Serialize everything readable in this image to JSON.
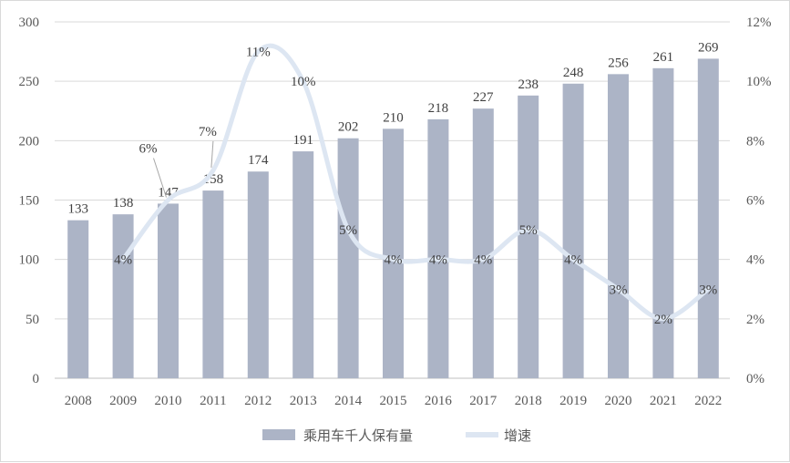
{
  "chart_data": {
    "type": "bar",
    "categories": [
      "2008",
      "2009",
      "2010",
      "2011",
      "2012",
      "2013",
      "2014",
      "2015",
      "2016",
      "2017",
      "2018",
      "2019",
      "2020",
      "2021",
      "2022"
    ],
    "series": [
      {
        "name": "乘用车千人保有量",
        "type": "bar",
        "axis": "left",
        "values": [
          133,
          138,
          147,
          158,
          174,
          191,
          202,
          210,
          218,
          227,
          238,
          248,
          256,
          261,
          269
        ],
        "labels": [
          "133",
          "138",
          "147",
          "158",
          "174",
          "191",
          "202",
          "210",
          "218",
          "227",
          "238",
          "248",
          "256",
          "261",
          "269"
        ],
        "color": "#acb4c6"
      },
      {
        "name": "增速",
        "type": "line",
        "axis": "right",
        "values": [
          null,
          4,
          6,
          7,
          11,
          10,
          5,
          4,
          4,
          4,
          5,
          4,
          3,
          2,
          3
        ],
        "labels": [
          "",
          "4%",
          "6%",
          "7%",
          "11%",
          "10%",
          "5%",
          "4%",
          "4%",
          "4%",
          "5%",
          "4%",
          "3%",
          "2%",
          "3%"
        ],
        "color": "#dde6f2"
      }
    ],
    "y_left": {
      "min": 0,
      "max": 300,
      "ticks": [
        "0",
        "50",
        "100",
        "150",
        "200",
        "250",
        "300"
      ]
    },
    "y_right": {
      "min": 0,
      "max": 12,
      "ticks": [
        "0%",
        "2%",
        "4%",
        "6%",
        "8%",
        "10%",
        "12%"
      ]
    },
    "grid": true,
    "legend": "bottom"
  }
}
